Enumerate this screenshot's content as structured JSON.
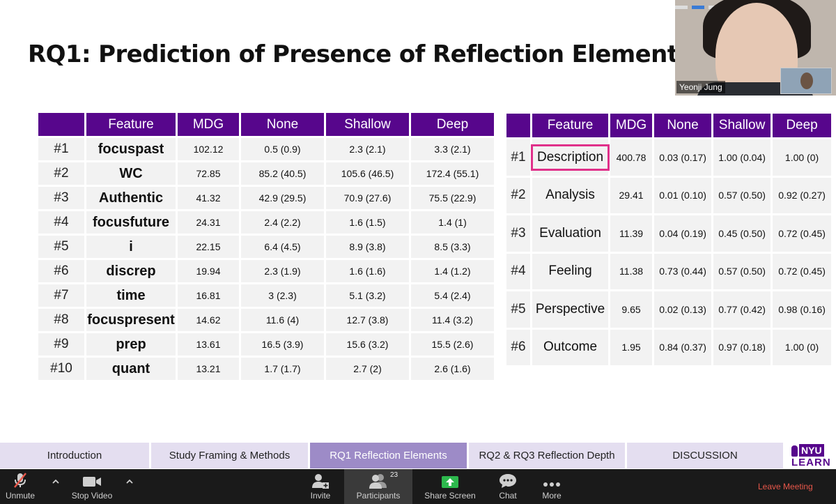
{
  "slide": {
    "title": "RQ1: Prediction of Presence of Reflection Elements"
  },
  "table_left": {
    "headers": [
      "",
      "Feature",
      "MDG",
      "None",
      "Shallow",
      "Deep"
    ],
    "rows": [
      {
        "rank": "#1",
        "feature": "focuspast",
        "mdg": "102.12",
        "none": "0.5 (0.9)",
        "shallow": "2.3 (2.1)",
        "deep": "3.3 (2.1)"
      },
      {
        "rank": "#2",
        "feature": "WC",
        "mdg": "72.85",
        "none": "85.2 (40.5)",
        "shallow": "105.6 (46.5)",
        "deep": "172.4 (55.1)"
      },
      {
        "rank": "#3",
        "feature": "Authentic",
        "mdg": "41.32",
        "none": "42.9 (29.5)",
        "shallow": "70.9 (27.6)",
        "deep": "75.5 (22.9)"
      },
      {
        "rank": "#4",
        "feature": "focusfuture",
        "mdg": "24.31",
        "none": "2.4 (2.2)",
        "shallow": "1.6 (1.5)",
        "deep": "1.4 (1)"
      },
      {
        "rank": "#5",
        "feature": "i",
        "mdg": "22.15",
        "none": "6.4 (4.5)",
        "shallow": "8.9 (3.8)",
        "deep": "8.5 (3.3)"
      },
      {
        "rank": "#6",
        "feature": "discrep",
        "mdg": "19.94",
        "none": "2.3 (1.9)",
        "shallow": "1.6 (1.6)",
        "deep": "1.4 (1.2)"
      },
      {
        "rank": "#7",
        "feature": "time",
        "mdg": "16.81",
        "none": "3 (2.3)",
        "shallow": "5.1 (3.2)",
        "deep": "5.4 (2.4)"
      },
      {
        "rank": "#8",
        "feature": "focuspresent",
        "mdg": "14.62",
        "none": "11.6 (4)",
        "shallow": "12.7 (3.8)",
        "deep": "11.4 (3.2)"
      },
      {
        "rank": "#9",
        "feature": "prep",
        "mdg": "13.61",
        "none": "16.5 (3.9)",
        "shallow": "15.6 (3.2)",
        "deep": "15.5 (2.6)"
      },
      {
        "rank": "#10",
        "feature": "quant",
        "mdg": "13.21",
        "none": "1.7 (1.7)",
        "shallow": "2.7 (2)",
        "deep": "2.6 (1.6)"
      }
    ]
  },
  "table_right": {
    "headers": [
      "",
      "Feature",
      "MDG",
      "None",
      "Shallow",
      "Deep"
    ],
    "rows": [
      {
        "rank": "#1",
        "feature": "Description",
        "mdg": "400.78",
        "none": "0.03 (0.17)",
        "shallow": "1.00 (0.04)",
        "deep": "1.00 (0)"
      },
      {
        "rank": "#2",
        "feature": "Analysis",
        "mdg": "29.41",
        "none": "0.01 (0.10)",
        "shallow": "0.57 (0.50)",
        "deep": "0.92 (0.27)"
      },
      {
        "rank": "#3",
        "feature": "Evaluation",
        "mdg": "11.39",
        "none": "0.04 (0.19)",
        "shallow": "0.45 (0.50)",
        "deep": "0.72 (0.45)"
      },
      {
        "rank": "#4",
        "feature": "Feeling",
        "mdg": "11.38",
        "none": "0.73 (0.44)",
        "shallow": "0.57 (0.50)",
        "deep": "0.72 (0.45)"
      },
      {
        "rank": "#5",
        "feature": "Perspective",
        "mdg": "9.65",
        "none": "0.02 (0.13)",
        "shallow": "0.77 (0.42)",
        "deep": "0.98 (0.16)"
      },
      {
        "rank": "#6",
        "feature": "Outcome",
        "mdg": "1.95",
        "none": "0.84 (0.37)",
        "shallow": "0.97 (0.18)",
        "deep": "1.00 (0)"
      }
    ],
    "highlighted_feature": "Description"
  },
  "video": {
    "participant_name": "Yeonji Jung"
  },
  "section_nav": {
    "tabs": [
      "Introduction",
      "Study Framing & Methods",
      "RQ1 Reflection Elements",
      "RQ2 & RQ3 Reflection Depth",
      "DISCUSSION"
    ],
    "active_tab": "RQ1 Reflection Elements",
    "logo_top": "NYU",
    "logo_bottom": "LEARN"
  },
  "toolbar": {
    "unmute": "Unmute",
    "stop_video": "Stop Video",
    "invite": "Invite",
    "participants": "Participants",
    "participants_count": "23",
    "share_screen": "Share Screen",
    "chat": "Chat",
    "more": "More",
    "leave_meeting": "Leave Meeting"
  },
  "colors": {
    "header_purple": "#57068c",
    "highlight_pink": "#e0308a",
    "active_tab": "#9d8bc7",
    "tab_bg": "#e4def0",
    "share_green": "#2db84d",
    "leave_red": "#e8574a"
  }
}
